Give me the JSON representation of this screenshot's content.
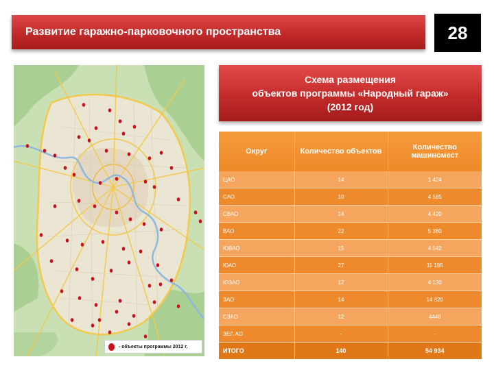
{
  "header": {
    "title": "Развитие гаражно-парковочного пространства",
    "page_number": "28"
  },
  "scheme": {
    "line1": "Схема размещения",
    "line2": "объектов программы «Народный гараж»",
    "line3": "(2012 год)"
  },
  "map": {
    "legend_text": "- объекты программы 2012 г.",
    "marker_color": "#c8101a"
  },
  "table": {
    "headers": {
      "district": "Округ",
      "objects": "Количество объектов",
      "spaces": "Количество машиномест"
    },
    "rows": [
      {
        "district": "ЦАО",
        "objects": "14",
        "spaces": "1 424"
      },
      {
        "district": "САО",
        "objects": "10",
        "spaces": "4 585"
      },
      {
        "district": "СВАО",
        "objects": "14",
        "spaces": "4 420"
      },
      {
        "district": "ВАО",
        "objects": "22",
        "spaces": "5 380"
      },
      {
        "district": "ЮВАО",
        "objects": "15",
        "spaces": "4 542"
      },
      {
        "district": "ЮАО",
        "objects": "27",
        "spaces": "11 185"
      },
      {
        "district": "ЮЗАО",
        "objects": "12",
        "spaces": "4 130"
      },
      {
        "district": "ЗАО",
        "objects": "14",
        "spaces": "14 820"
      },
      {
        "district": "СЗАО",
        "objects": "12",
        "spaces": "4448"
      },
      {
        "district": "ЗЕЛ.АО",
        "objects": "-",
        "spaces": "-"
      }
    ],
    "total": {
      "district": "ИТОГО",
      "objects": "140",
      "spaces": "54 934"
    }
  },
  "colors": {
    "title_red": "#c22a2a",
    "table_orange_light": "#f5a55d",
    "table_orange_dark": "#ee8a2c"
  }
}
